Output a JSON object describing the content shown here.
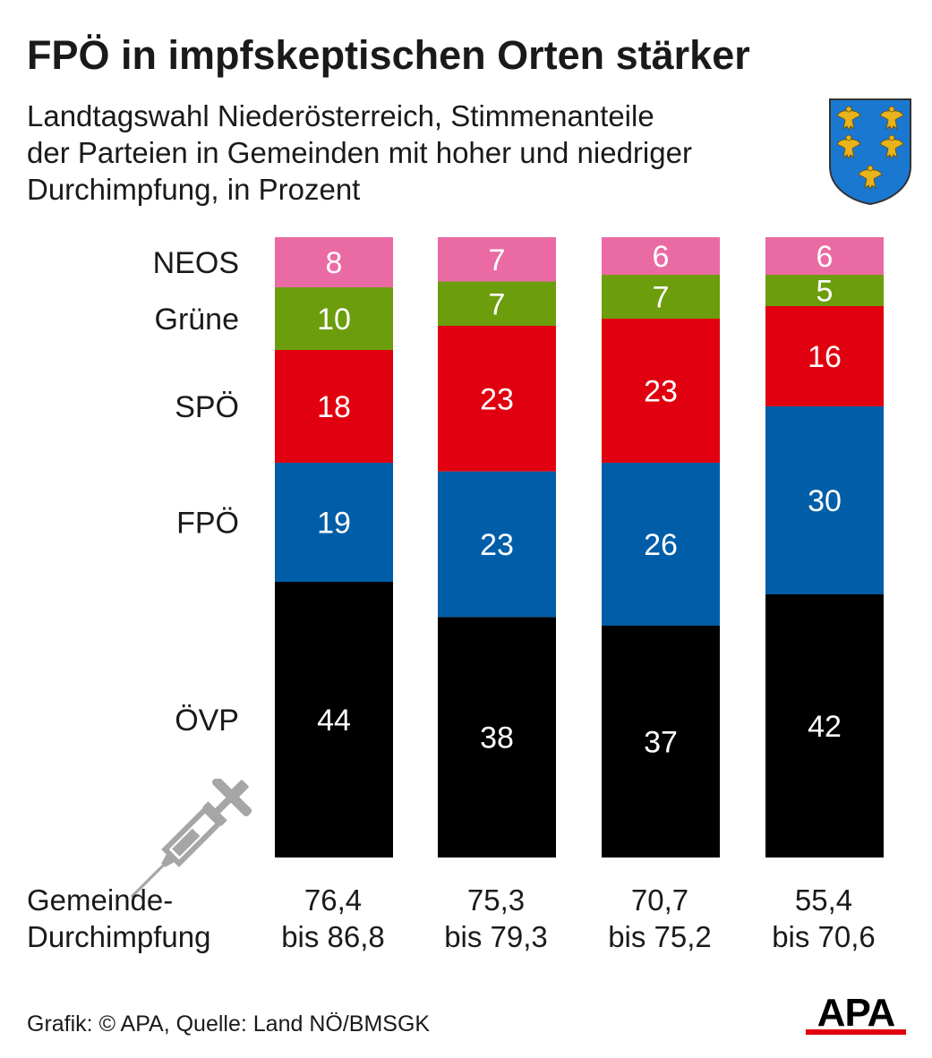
{
  "title": "FPÖ in impfskeptischen Orten stärker",
  "subtitle_lines": [
    "Landtagswahl Niederösterreich, Stimmenanteile",
    "der Parteien in Gemeinden mit hoher und niedriger",
    "Durchimpfung, in Prozent"
  ],
  "footer_label": [
    "Gemeinde-",
    "Durchimpfung"
  ],
  "source": "Grafik: © APA, Quelle: Land NÖ/BMSGK",
  "logo_text": "APA",
  "crest_icon": "lower-austria-crest-icon",
  "syringe_icon": "syringe-icon",
  "chart_data": {
    "type": "bar",
    "stacked": true,
    "orientation": "vertical",
    "categories": [
      "76,4 bis 86,8",
      "75,3 bis 79,3",
      "70,7 bis 75,2",
      "55,4 bis 70,6"
    ],
    "category_lines": [
      [
        "76,4",
        "bis 86,8"
      ],
      [
        "75,3",
        "bis 79,3"
      ],
      [
        "70,7",
        "bis 75,2"
      ],
      [
        "55,4",
        "bis 70,6"
      ]
    ],
    "series": [
      {
        "name": "ÖVP",
        "color": "#000000",
        "values": [
          44,
          38,
          37,
          42
        ]
      },
      {
        "name": "FPÖ",
        "color": "#005ea8",
        "values": [
          19,
          23,
          26,
          30
        ]
      },
      {
        "name": "SPÖ",
        "color": "#e0000f",
        "values": [
          18,
          23,
          23,
          16
        ]
      },
      {
        "name": "Grüne",
        "color": "#6c9d0d",
        "values": [
          10,
          7,
          7,
          5
        ]
      },
      {
        "name": "NEOS",
        "color": "#ea6ba4",
        "values": [
          8,
          7,
          6,
          6
        ]
      }
    ],
    "xlabel": "Gemeinde-Durchimpfung",
    "ylabel": "",
    "ylim": [
      0,
      100
    ],
    "grid": false,
    "legend": "left",
    "data_labels": true,
    "label_color": "#ffffff"
  }
}
